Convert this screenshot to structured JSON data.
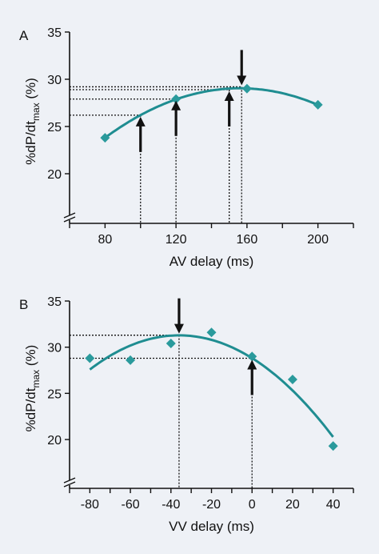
{
  "chart_data": [
    {
      "type": "scatter",
      "panel_label": "A",
      "xlabel": "AV delay (ms)",
      "ylabel": {
        "main": "%dP/dt",
        "sub": "max",
        "unit": " (%)"
      },
      "xlim": [
        60,
        220
      ],
      "ylim": [
        20,
        35
      ],
      "xticks": [
        80,
        120,
        160,
        200
      ],
      "yticks": [
        20,
        25,
        30,
        35
      ],
      "axis_break": true,
      "series": [
        {
          "points": [
            {
              "x": 80,
              "y": 23.8
            },
            {
              "x": 120,
              "y": 27.9
            },
            {
              "x": 160,
              "y": 29.0
            },
            {
              "x": 200,
              "y": 27.3
            }
          ]
        }
      ],
      "fit": {
        "type": "quadratic",
        "x_range": [
          80,
          200
        ]
      },
      "ref_lines": [
        {
          "x": 100,
          "y": 26.2
        },
        {
          "x": 120,
          "y": 27.9
        },
        {
          "x": 150,
          "y": 28.9
        },
        {
          "x": 157,
          "y": 29.2
        }
      ],
      "arrows": [
        {
          "x": 100,
          "y_tip": 26.2,
          "dir": "up"
        },
        {
          "x": 120,
          "y_tip": 27.9,
          "dir": "up"
        },
        {
          "x": 150,
          "y_tip": 28.9,
          "dir": "up"
        },
        {
          "x": 157,
          "y_tip": 29.2,
          "dir": "down"
        }
      ]
    },
    {
      "type": "scatter",
      "panel_label": "B",
      "xlabel": "VV delay (ms)",
      "ylabel": {
        "main": "%dP/dt",
        "sub": "max",
        "unit": " (%)"
      },
      "xlim": [
        -90,
        50
      ],
      "ylim": [
        20,
        35
      ],
      "xticks": [
        -80,
        -60,
        -40,
        -20,
        0,
        20,
        40
      ],
      "yticks": [
        20,
        25,
        30,
        35
      ],
      "axis_break": true,
      "series": [
        {
          "points": [
            {
              "x": -80,
              "y": 28.8
            },
            {
              "x": -60,
              "y": 28.6
            },
            {
              "x": -40,
              "y": 30.4
            },
            {
              "x": -20,
              "y": 31.6
            },
            {
              "x": 0,
              "y": 29.0
            },
            {
              "x": 20,
              "y": 26.5
            },
            {
              "x": 40,
              "y": 19.3
            }
          ]
        }
      ],
      "fit": {
        "type": "quadratic",
        "x_range": [
          -80,
          40
        ]
      },
      "ref_lines": [
        {
          "x": -36,
          "y": 31.3
        },
        {
          "x": 0,
          "y": 28.8
        }
      ],
      "arrows": [
        {
          "x": -36,
          "y_tip": 31.3,
          "dir": "down"
        },
        {
          "x": 0,
          "y_tip": 28.8,
          "dir": "up"
        }
      ]
    }
  ],
  "colors": {
    "marker": "#2a9a9c",
    "fit": "#1f8d91",
    "axis": "#111111",
    "background": "#eef1f6"
  }
}
